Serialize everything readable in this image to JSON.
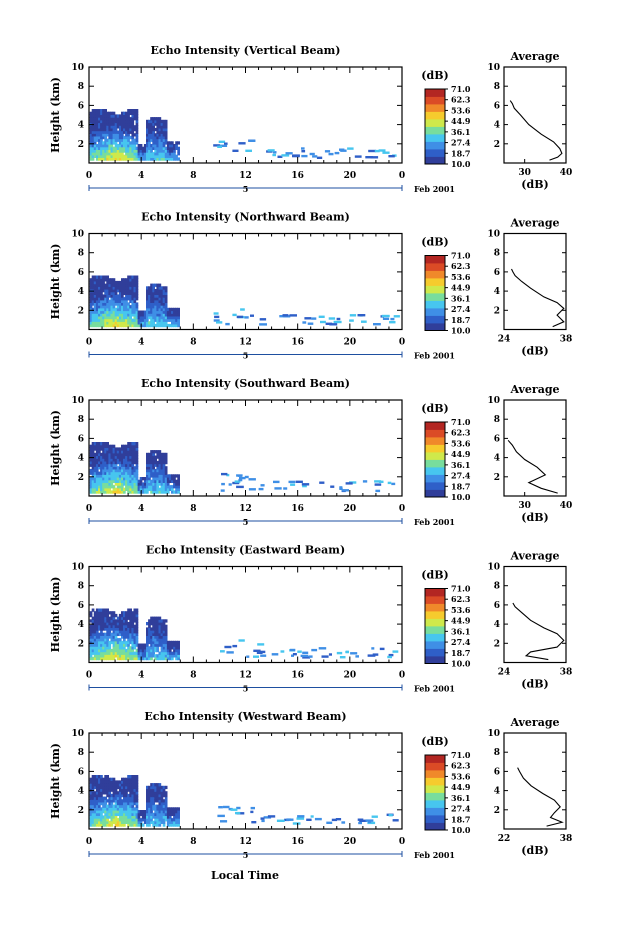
{
  "figure": {
    "x_caption": "Local Time",
    "date_label": "Feb 2001",
    "date_day": "5",
    "colorbar_unit": "(dB)",
    "colorbar_ticks": [
      "71.0",
      "62.3",
      "53.6",
      "44.9",
      "36.1",
      "27.4",
      "18.7",
      "10.0"
    ],
    "colors": [
      "#303e9a",
      "#2f5fc8",
      "#3f8fe6",
      "#47c6ef",
      "#78dd9d",
      "#cfe94b",
      "#f6cb2d",
      "#f0892a",
      "#db4b26",
      "#b32622"
    ],
    "avg_title": "Average",
    "avg_xunit": "(dB)"
  },
  "chart_data": [
    {
      "type": "heatmap",
      "title": "Echo Intensity (Vertical Beam)",
      "ylabel": "Height (km)",
      "xlabel": "Local Time",
      "xlim": [
        0,
        24
      ],
      "ylim": [
        0,
        10
      ],
      "xticks": [
        "0",
        "4",
        "8",
        "12",
        "16",
        "20",
        "0"
      ],
      "yticks": [
        "2",
        "4",
        "6",
        "8",
        "10"
      ],
      "colorbar_range": [
        10.0,
        71.0
      ],
      "profile": {
        "title": "Average",
        "xlabel": "(dB)",
        "xlim": [
          25,
          40
        ],
        "xticks": [
          "30",
          "40"
        ],
        "x": [
          36,
          38,
          39,
          38.5,
          37,
          34,
          31,
          29,
          27.5,
          27,
          26.5
        ],
        "y": [
          0.3,
          0.6,
          1.0,
          1.5,
          2.2,
          3.0,
          4.0,
          5.0,
          5.7,
          6.2,
          6.5
        ]
      }
    },
    {
      "type": "heatmap",
      "title": "Echo Intensity (Northward Beam)",
      "ylabel": "Height (km)",
      "xlabel": "Local Time",
      "xlim": [
        0,
        24
      ],
      "ylim": [
        0,
        10
      ],
      "xticks": [
        "0",
        "4",
        "8",
        "12",
        "16",
        "20",
        "0"
      ],
      "yticks": [
        "2",
        "4",
        "6",
        "8",
        "10"
      ],
      "colorbar_range": [
        10.0,
        71.0
      ],
      "profile": {
        "title": "Average",
        "xlabel": "(dB)",
        "xlim": [
          24,
          38
        ],
        "xticks": [
          "24",
          "38"
        ],
        "x": [
          35,
          37.5,
          36,
          37.5,
          36,
          33,
          30,
          28,
          26.5,
          26,
          25.7
        ],
        "y": [
          0.3,
          0.8,
          1.5,
          2.2,
          2.8,
          3.4,
          4.3,
          5.0,
          5.6,
          6.0,
          6.3
        ]
      }
    },
    {
      "type": "heatmap",
      "title": "Echo Intensity (Southward Beam)",
      "ylabel": "Height (km)",
      "xlabel": "Local Time",
      "xlim": [
        0,
        24
      ],
      "ylim": [
        0,
        10
      ],
      "xticks": [
        "0",
        "4",
        "8",
        "12",
        "16",
        "20",
        "0"
      ],
      "yticks": [
        "2",
        "4",
        "6",
        "8",
        "10"
      ],
      "colorbar_range": [
        10.0,
        71.0
      ],
      "profile": {
        "title": "Average",
        "xlabel": "(dB)",
        "xlim": [
          25,
          40
        ],
        "xticks": [
          "30",
          "40"
        ],
        "x": [
          38,
          34,
          31,
          35,
          33,
          30,
          28,
          27,
          26
        ],
        "y": [
          0.3,
          0.8,
          1.4,
          2.2,
          3.0,
          3.8,
          4.6,
          5.3,
          5.8
        ]
      }
    },
    {
      "type": "heatmap",
      "title": "Echo Intensity (Eastward Beam)",
      "ylabel": "Height (km)",
      "xlabel": "Local Time",
      "xlim": [
        0,
        24
      ],
      "ylim": [
        0,
        10
      ],
      "xticks": [
        "0",
        "4",
        "8",
        "12",
        "16",
        "20",
        "0"
      ],
      "yticks": [
        "2",
        "4",
        "6",
        "8",
        "10"
      ],
      "colorbar_range": [
        10.0,
        71.0
      ],
      "profile": {
        "title": "Average",
        "xlabel": "(dB)",
        "xlim": [
          24,
          38
        ],
        "xticks": [
          "24",
          "38"
        ],
        "x": [
          34,
          29,
          30,
          36,
          37.5,
          36,
          33,
          30,
          28,
          26.5,
          26
        ],
        "y": [
          0.3,
          0.7,
          1.1,
          1.6,
          2.3,
          3.0,
          3.6,
          4.4,
          5.2,
          5.8,
          6.2
        ]
      }
    },
    {
      "type": "heatmap",
      "title": "Echo Intensity (Westward Beam)",
      "ylabel": "Height (km)",
      "xlabel": "Local Time",
      "xlim": [
        0,
        24
      ],
      "ylim": [
        0,
        10
      ],
      "xticks": [
        "0",
        "4",
        "8",
        "12",
        "16",
        "20",
        "0"
      ],
      "yticks": [
        "2",
        "4",
        "6",
        "8",
        "10"
      ],
      "colorbar_range": [
        10.0,
        71.0
      ],
      "profile": {
        "title": "Average",
        "xlabel": "(dB)",
        "xlim": [
          22,
          38
        ],
        "xticks": [
          "22",
          "38"
        ],
        "x": [
          33,
          37,
          34,
          35,
          36.5,
          35,
          32,
          29,
          27,
          26,
          25.5
        ],
        "y": [
          0.3,
          0.7,
          1.2,
          1.7,
          2.3,
          3.0,
          3.7,
          4.5,
          5.3,
          6.0,
          6.4
        ]
      }
    }
  ]
}
